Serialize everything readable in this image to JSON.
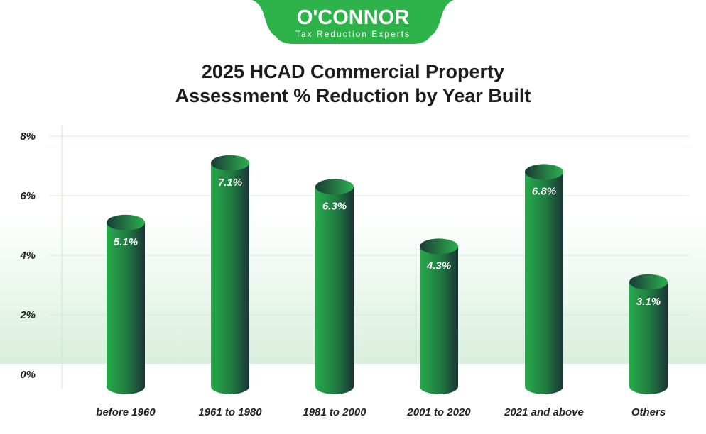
{
  "brand": {
    "name": "O'CONNOR",
    "tagline": "Tax Reduction Experts",
    "color": "#2db34a"
  },
  "chart_data": {
    "type": "bar",
    "title_lines": [
      "2025 HCAD Commercial Property",
      "Assessment % Reduction by Year Built"
    ],
    "categories": [
      "before 1960",
      "1961 to 1980",
      "1981 to 2000",
      "2001 to 2020",
      "2021 and above",
      "Others"
    ],
    "values": [
      5.1,
      7.1,
      6.3,
      4.3,
      6.8,
      3.1
    ],
    "value_labels": [
      "5.1%",
      "7.1%",
      "6.3%",
      "4.3%",
      "6.8%",
      "3.1%"
    ],
    "ylim": [
      0,
      8
    ],
    "yticks": [
      "0%",
      "2%",
      "4%",
      "6%",
      "8%"
    ],
    "ytick_values": [
      0,
      2,
      4,
      6,
      8
    ],
    "grid": true,
    "bar_style": "3d cylinder",
    "bar_colors": [
      "#26a84a",
      "#1b3a36"
    ]
  }
}
